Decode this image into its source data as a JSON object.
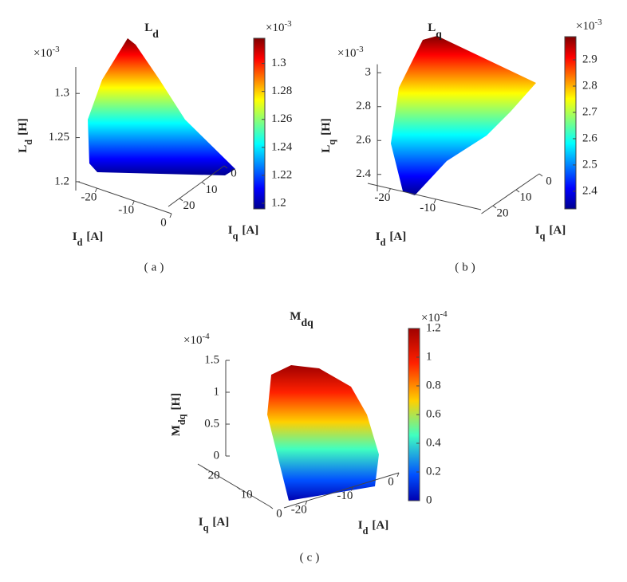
{
  "chart_data": [
    {
      "type": "surface",
      "title": {
        "text": "L",
        "subscript": "d"
      },
      "zlabel": {
        "text": "L",
        "subscript": "d",
        "unit": "[H]"
      },
      "xlabel": {
        "text": "I",
        "subscript": "d",
        "unit": "[A]"
      },
      "ylabel": {
        "text": "I",
        "subscript": "q",
        "unit": "[A]"
      },
      "zexponent": {
        "base": "×10",
        "power": "-3"
      },
      "zlim": [
        1.19,
        1.33
      ],
      "zticks": [
        1.2,
        1.25,
        1.3
      ],
      "xlim": [
        -25,
        0
      ],
      "xticks": [
        0,
        -10,
        -20
      ],
      "ylim": [
        0,
        25
      ],
      "yticks": [
        0,
        10,
        20
      ],
      "colorbar_exponent": {
        "base": "×10",
        "power": "-3"
      },
      "clim": [
        1.196,
        1.318
      ],
      "cticks": [
        1.2,
        1.22,
        1.24,
        1.26,
        1.28,
        1.3
      ],
      "caption": "(a)"
    },
    {
      "type": "surface",
      "title": {
        "text": "L",
        "subscript": "q"
      },
      "zlabel": {
        "text": "L",
        "subscript": "q",
        "unit": "[H]"
      },
      "xlabel": {
        "text": "I",
        "subscript": "d",
        "unit": "[A]"
      },
      "ylabel": {
        "text": "I",
        "subscript": "q",
        "unit": "[A]"
      },
      "zexponent": {
        "base": "×10",
        "power": "-3"
      },
      "zlim": [
        2.3,
        3.05
      ],
      "zticks": [
        2.4,
        2.6,
        2.8,
        3
      ],
      "xlim": [
        -25,
        0
      ],
      "xticks": [
        -10,
        -20
      ],
      "ylim": [
        0,
        25
      ],
      "yticks": [
        0,
        10,
        20
      ],
      "colorbar_exponent": {
        "base": "×10",
        "power": "-3"
      },
      "clim": [
        2.333,
        2.988
      ],
      "cticks": [
        2.4,
        2.5,
        2.6,
        2.7,
        2.8,
        2.9
      ],
      "caption": "(b)"
    },
    {
      "type": "surface",
      "title": {
        "text": "M",
        "subscript": "dq"
      },
      "zlabel": {
        "text": "M",
        "subscript": "dq",
        "unit": "[H]"
      },
      "xlabel": {
        "text": "I",
        "subscript": "d",
        "unit": "[A]"
      },
      "ylabel": {
        "text": "I",
        "subscript": "q",
        "unit": "[A]"
      },
      "zexponent": {
        "base": "×10",
        "power": "-4"
      },
      "zlim": [
        0,
        1.5
      ],
      "zticks": [
        0,
        0.5,
        1,
        1.5
      ],
      "xlim": [
        -25,
        0
      ],
      "xticks": [
        0,
        -10,
        -20
      ],
      "ylim": [
        0,
        22
      ],
      "yticks": [
        0,
        10,
        20
      ],
      "colorbar_exponent": {
        "base": "×10",
        "power": "-4"
      },
      "clim": [
        0,
        1.2
      ],
      "cticks": [
        0,
        0.2,
        0.4,
        0.6,
        0.8,
        1,
        1.2
      ],
      "caption": "(c)"
    }
  ]
}
